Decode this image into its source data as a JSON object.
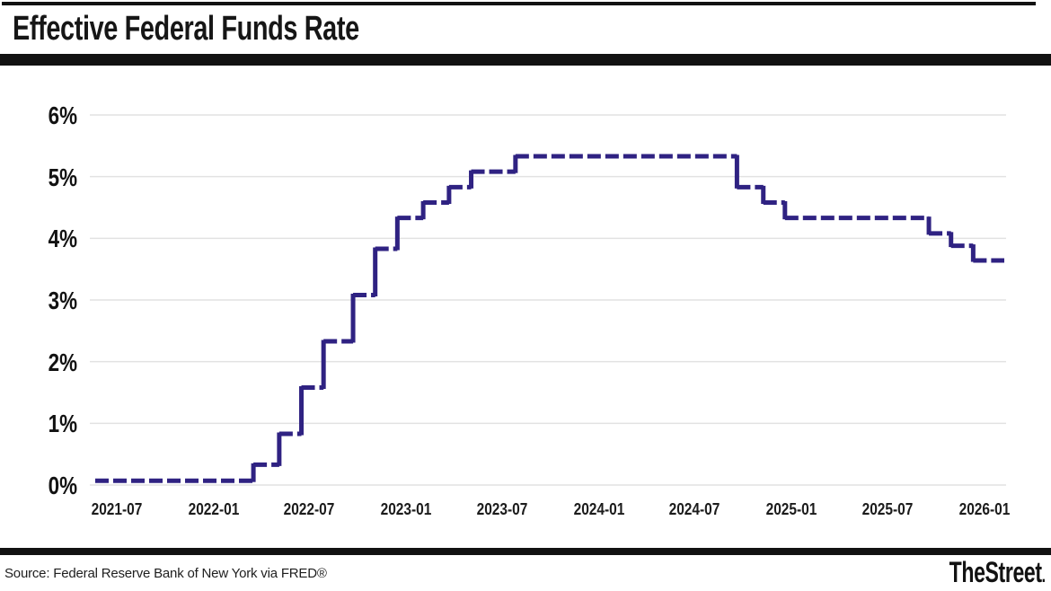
{
  "header": {
    "title": "Effective Federal Funds Rate"
  },
  "footer": {
    "source": "Source: Federal Reserve Bank of New York via FRED®",
    "brand": "TheStreet",
    "brand_mark": "."
  },
  "chart_data": {
    "type": "line",
    "subtype": "step",
    "title": "Effective Federal Funds Rate",
    "series_name": "Effective Federal Funds Rate",
    "unit": "percent",
    "grid": true,
    "legend": false,
    "line_color": "#2f2282",
    "grid_color": "#e2e2e2",
    "ylim": [
      0,
      6
    ],
    "y_tick_labels": [
      "0%",
      "1%",
      "2%",
      "3%",
      "4%",
      "5%",
      "6%"
    ],
    "x_tick_labels": [
      "2021-07",
      "2022-01",
      "2022-07",
      "2023-01",
      "2023-07",
      "2024-01",
      "2024-07",
      "2025-01",
      "2025-07",
      "2026-01"
    ],
    "x_range": [
      "2021-05-21",
      "2026-02-08"
    ],
    "steps": [
      {
        "date": "2021-05-21",
        "value": 0.07
      },
      {
        "date": "2022-03-17",
        "value": 0.33
      },
      {
        "date": "2022-05-05",
        "value": 0.83
      },
      {
        "date": "2022-06-16",
        "value": 1.58
      },
      {
        "date": "2022-07-28",
        "value": 2.33
      },
      {
        "date": "2022-09-22",
        "value": 3.08
      },
      {
        "date": "2022-11-03",
        "value": 3.83
      },
      {
        "date": "2022-12-15",
        "value": 4.33
      },
      {
        "date": "2023-02-02",
        "value": 4.58
      },
      {
        "date": "2023-03-23",
        "value": 4.83
      },
      {
        "date": "2023-05-04",
        "value": 5.08
      },
      {
        "date": "2023-07-27",
        "value": 5.33
      },
      {
        "date": "2024-09-19",
        "value": 4.83
      },
      {
        "date": "2024-11-08",
        "value": 4.58
      },
      {
        "date": "2024-12-19",
        "value": 4.33
      },
      {
        "date": "2025-09-18",
        "value": 4.08
      },
      {
        "date": "2025-10-30",
        "value": 3.88
      },
      {
        "date": "2025-12-11",
        "value": 3.64
      }
    ]
  }
}
